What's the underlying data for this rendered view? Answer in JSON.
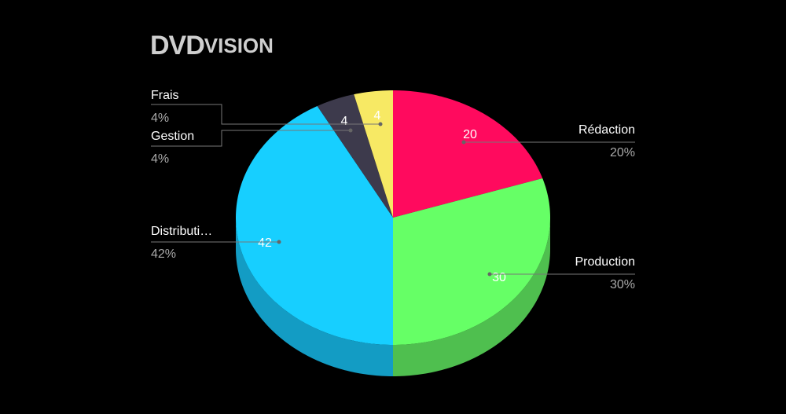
{
  "brand": {
    "main": "DVD",
    "rest": "VISION"
  },
  "chart_data": {
    "type": "pie3d",
    "categories": [
      "Rédaction",
      "Production",
      "Distributi…",
      "Gestion",
      "Frais"
    ],
    "values": [
      20,
      30,
      42,
      4,
      4
    ],
    "value_labels": [
      "20%",
      "30%",
      "42%",
      "4%",
      "4%"
    ],
    "colors": [
      "#ff0a5e",
      "#66ff66",
      "#17cfff",
      "#3d3a4c",
      "#f7e964"
    ],
    "side_colors": [
      "#c00848",
      "#4fbf4f",
      "#139cc4",
      "#2c2a38",
      "#bbb04a"
    ]
  }
}
